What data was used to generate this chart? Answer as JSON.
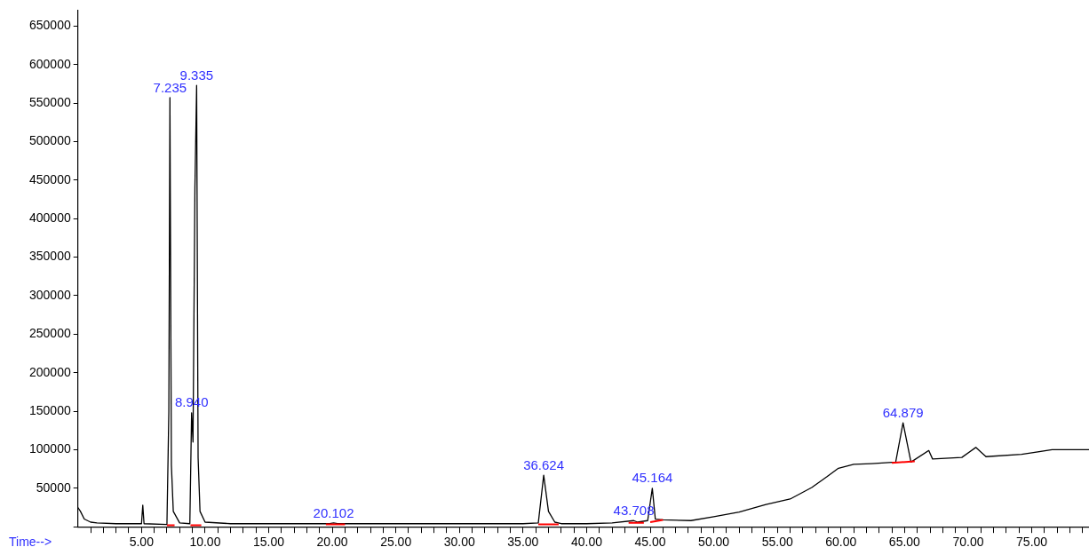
{
  "chart_data": {
    "type": "line",
    "xlabel": "Time-->",
    "xlim": [
      0,
      79.5
    ],
    "ylim": [
      0,
      670000
    ],
    "xticks": [
      {
        "value": 1,
        "label": null
      },
      {
        "value": 2,
        "label": null
      },
      {
        "value": 3,
        "label": null
      },
      {
        "value": 4,
        "label": null
      },
      {
        "value": 5,
        "label": "5.00"
      },
      {
        "value": 6,
        "label": null
      },
      {
        "value": 7,
        "label": null
      },
      {
        "value": 8,
        "label": null
      },
      {
        "value": 9,
        "label": null
      },
      {
        "value": 10,
        "label": "10.00"
      },
      {
        "value": 11,
        "label": null
      },
      {
        "value": 12,
        "label": null
      },
      {
        "value": 13,
        "label": null
      },
      {
        "value": 14,
        "label": null
      },
      {
        "value": 15,
        "label": "15.00"
      },
      {
        "value": 16,
        "label": null
      },
      {
        "value": 17,
        "label": null
      },
      {
        "value": 18,
        "label": null
      },
      {
        "value": 19,
        "label": null
      },
      {
        "value": 20,
        "label": "20.00"
      },
      {
        "value": 21,
        "label": null
      },
      {
        "value": 22,
        "label": null
      },
      {
        "value": 23,
        "label": null
      },
      {
        "value": 24,
        "label": null
      },
      {
        "value": 25,
        "label": "25.00"
      },
      {
        "value": 26,
        "label": null
      },
      {
        "value": 27,
        "label": null
      },
      {
        "value": 28,
        "label": null
      },
      {
        "value": 29,
        "label": null
      },
      {
        "value": 30,
        "label": "30.00"
      },
      {
        "value": 31,
        "label": null
      },
      {
        "value": 32,
        "label": null
      },
      {
        "value": 33,
        "label": null
      },
      {
        "value": 34,
        "label": null
      },
      {
        "value": 35,
        "label": "35.00"
      },
      {
        "value": 36,
        "label": null
      },
      {
        "value": 37,
        "label": null
      },
      {
        "value": 38,
        "label": null
      },
      {
        "value": 39,
        "label": null
      },
      {
        "value": 40,
        "label": "40.00"
      },
      {
        "value": 41,
        "label": null
      },
      {
        "value": 42,
        "label": null
      },
      {
        "value": 43,
        "label": null
      },
      {
        "value": 44,
        "label": null
      },
      {
        "value": 45,
        "label": "45.00"
      },
      {
        "value": 46,
        "label": null
      },
      {
        "value": 47,
        "label": null
      },
      {
        "value": 48,
        "label": null
      },
      {
        "value": 49,
        "label": null
      },
      {
        "value": 50,
        "label": "50.00"
      },
      {
        "value": 51,
        "label": null
      },
      {
        "value": 52,
        "label": null
      },
      {
        "value": 53,
        "label": null
      },
      {
        "value": 54,
        "label": null
      },
      {
        "value": 55,
        "label": "55.00"
      },
      {
        "value": 56,
        "label": null
      },
      {
        "value": 57,
        "label": null
      },
      {
        "value": 58,
        "label": null
      },
      {
        "value": 59,
        "label": null
      },
      {
        "value": 60,
        "label": "60.00"
      },
      {
        "value": 61,
        "label": null
      },
      {
        "value": 62,
        "label": null
      },
      {
        "value": 63,
        "label": null
      },
      {
        "value": 64,
        "label": null
      },
      {
        "value": 65,
        "label": "65.00"
      },
      {
        "value": 66,
        "label": null
      },
      {
        "value": 67,
        "label": null
      },
      {
        "value": 68,
        "label": null
      },
      {
        "value": 69,
        "label": null
      },
      {
        "value": 70,
        "label": "70.00"
      },
      {
        "value": 71,
        "label": null
      },
      {
        "value": 72,
        "label": null
      },
      {
        "value": 73,
        "label": null
      },
      {
        "value": 74,
        "label": null
      },
      {
        "value": 75,
        "label": "75.00"
      },
      {
        "value": 76,
        "label": null
      },
      {
        "value": 77,
        "label": null
      },
      {
        "value": 78,
        "label": null
      },
      {
        "value": 79,
        "label": null
      }
    ],
    "yticks": [
      {
        "value": 0,
        "label": null
      },
      50000,
      100000,
      150000,
      200000,
      250000,
      300000,
      350000,
      400000,
      450000,
      500000,
      550000,
      600000,
      650000
    ],
    "grid": false,
    "marker": "none",
    "line_style": "solid",
    "series": [
      {
        "color": "#000000",
        "x": [
          0,
          0.2,
          0.5,
          1,
          1.5,
          3,
          5,
          5.1,
          5.2,
          7,
          7.15,
          7.235,
          7.35,
          7.5,
          8,
          8.8,
          8.94,
          9.05,
          9.2,
          9.335,
          9.45,
          9.6,
          10,
          12,
          19.8,
          20.102,
          20.4,
          25,
          30,
          35,
          36.2,
          36.624,
          37,
          37.5,
          38,
          40,
          42,
          43.708,
          44,
          44.8,
          45.164,
          45.4,
          46,
          48.2,
          50,
          52,
          54.1,
          56,
          57.7,
          58.9,
          59.8,
          61,
          62.4,
          64.3,
          64.879,
          65.5,
          66.9,
          67.2,
          69.5,
          70.6,
          71.4,
          74.2,
          76.6,
          79.5
        ],
        "values": [
          25000,
          20000,
          10000,
          6000,
          5000,
          4000,
          4000,
          28000,
          4000,
          3000,
          150000,
          557000,
          80000,
          20000,
          5000,
          4000,
          148000,
          110000,
          440000,
          573000,
          90000,
          20000,
          6000,
          4000,
          4000,
          5000,
          4000,
          4000,
          4000,
          4000,
          5000,
          67000,
          20000,
          6000,
          4000,
          4000,
          5000,
          8000,
          6000,
          8000,
          50000,
          10000,
          9000,
          8000,
          13000,
          19000,
          29000,
          36000,
          51000,
          65000,
          76000,
          81000,
          82000,
          84000,
          135000,
          84000,
          99000,
          88000,
          90000,
          103000,
          91000,
          94000,
          100000,
          100000
        ]
      },
      {
        "color": "#ff0000",
        "x": [
          7.0,
          7.6,
          7.7,
          8.85,
          9.7,
          9.8,
          19.5,
          21,
          21.1,
          36.2,
          37.8,
          37.9,
          43.3,
          44.5,
          44.6,
          45.0,
          46.0,
          46.1,
          64.0,
          65.8
        ],
        "values": [
          2000,
          2000,
          null,
          2000,
          2000,
          null,
          3000,
          3000,
          null,
          3000,
          3000,
          null,
          5000,
          5000,
          null,
          6000,
          9000,
          null,
          83000,
          85000
        ]
      }
    ],
    "annotations": [
      {
        "text": "7.235",
        "x": 7.235,
        "y": 557000
      },
      {
        "text": "9.335",
        "x": 9.335,
        "y": 573000
      },
      {
        "text": "8.940",
        "x": 8.94,
        "y": 148000
      },
      {
        "text": "20.102",
        "x": 20.102,
        "y": 5000
      },
      {
        "text": "36.624",
        "x": 36.624,
        "y": 67000
      },
      {
        "text": "43.708",
        "x": 43.708,
        "y": 8000
      },
      {
        "text": "45.164",
        "x": 45.164,
        "y": 50000
      },
      {
        "text": "64.879",
        "x": 64.879,
        "y": 135000
      }
    ]
  }
}
